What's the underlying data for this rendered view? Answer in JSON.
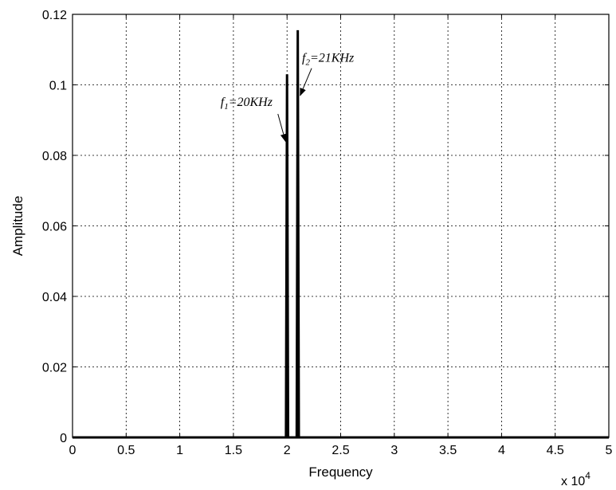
{
  "chart_data": {
    "type": "line",
    "title": "",
    "xlabel": "Frequency",
    "ylabel": "Amplitude",
    "x_exponent_label": {
      "base": "x 10",
      "exp": "4"
    },
    "xlim": [
      0,
      5
    ],
    "ylim": [
      0,
      0.12
    ],
    "x_ticks": [
      0,
      0.5,
      1,
      1.5,
      2,
      2.5,
      3,
      3.5,
      4,
      4.5,
      5
    ],
    "x_tick_labels": [
      "0",
      "0.5",
      "1",
      "1.5",
      "2",
      "2.5",
      "3",
      "3.5",
      "4",
      "4.5",
      "5"
    ],
    "y_ticks": [
      0,
      0.02,
      0.04,
      0.06,
      0.08,
      0.1,
      0.12
    ],
    "y_tick_labels": [
      "0",
      "0.02",
      "0.04",
      "0.06",
      "0.08",
      "0.1",
      "0.12"
    ],
    "grid": true,
    "series": [
      {
        "x": [
          0,
          1.99,
          2.0,
          2.01,
          2.09,
          2.1,
          2.11,
          5
        ],
        "y": [
          0,
          0,
          0.103,
          0,
          0,
          0.1155,
          0,
          0
        ]
      }
    ],
    "annotations": [
      {
        "f": "f",
        "sub": "1",
        "rest": "=20KHz",
        "target": [
          2.0,
          0.084
        ],
        "text_pos": [
          1.38,
          0.094
        ]
      },
      {
        "f": "f",
        "sub": "2",
        "rest": "=21KHz",
        "target": [
          2.1,
          0.097
        ],
        "text_pos": [
          2.14,
          0.1065
        ]
      }
    ]
  }
}
